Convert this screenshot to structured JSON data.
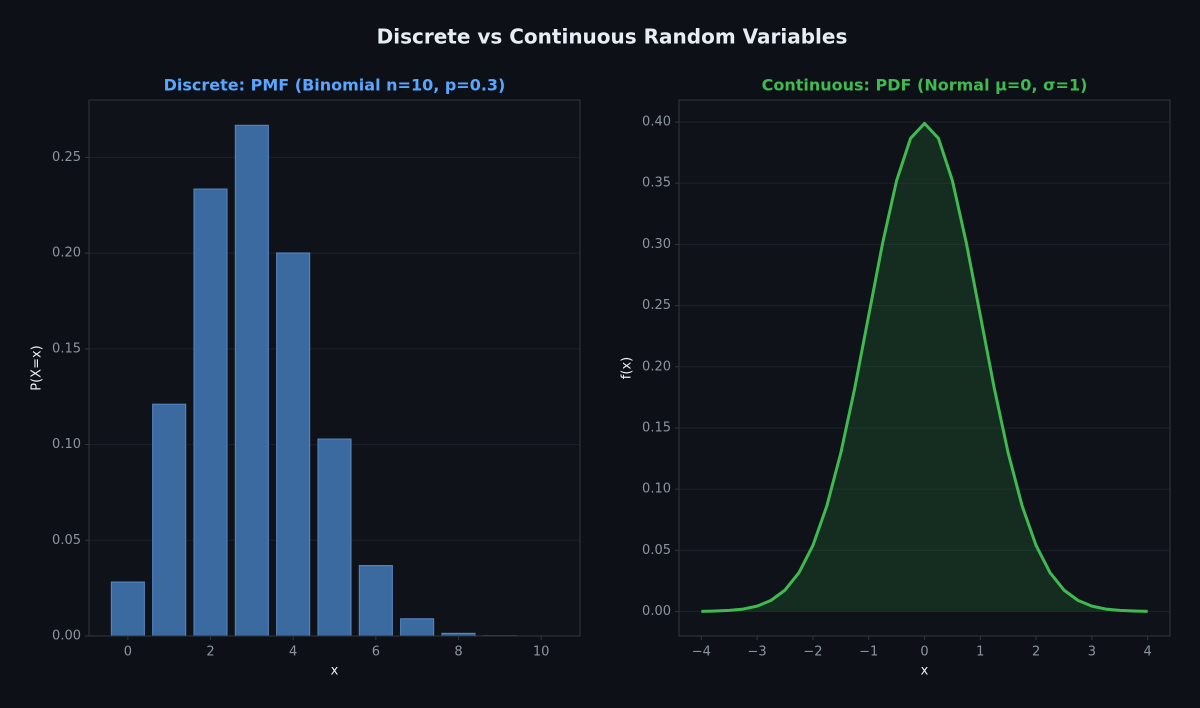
{
  "title": "Discrete vs Continuous Random Variables",
  "chart_data": [
    {
      "type": "bar",
      "title": "Discrete: PMF (Binomial n=10, p=0.3)",
      "title_color": "#58a6ff",
      "x": [
        0,
        1,
        2,
        3,
        4,
        5,
        6,
        7,
        8,
        9,
        10
      ],
      "values": [
        0.0282,
        0.1211,
        0.2335,
        0.2668,
        0.2001,
        0.1029,
        0.0368,
        0.009,
        0.0014,
        0.0001,
        0.0
      ],
      "color": "#3d6fa8",
      "xlabel": "x",
      "ylabel": "P(X=x)",
      "xlim": [
        -0.94,
        10.94
      ],
      "ylim": [
        0,
        0.28
      ],
      "xticks": [
        0,
        2,
        4,
        6,
        8,
        10
      ],
      "yticks": [
        {
          "value": 0,
          "label": "0.00"
        },
        {
          "value": 0.05,
          "label": "0.05"
        },
        {
          "value": 0.1,
          "label": "0.10"
        },
        {
          "value": 0.15,
          "label": "0.15"
        },
        {
          "value": 0.2,
          "label": "0.20"
        },
        {
          "value": 0.25,
          "label": "0.25"
        }
      ],
      "grid": true
    },
    {
      "type": "area",
      "title": "Continuous: PDF (Normal μ=0, σ=1)",
      "title_color": "#3fb950",
      "x": [
        -4,
        -3.75,
        -3.5,
        -3.25,
        -3,
        -2.75,
        -2.5,
        -2.25,
        -2,
        -1.75,
        -1.5,
        -1.25,
        -1,
        -0.75,
        -0.5,
        -0.25,
        0,
        0.25,
        0.5,
        0.75,
        1,
        1.25,
        1.5,
        1.75,
        2,
        2.25,
        2.5,
        2.75,
        3,
        3.25,
        3.5,
        3.75,
        4
      ],
      "values": [
        0.0001,
        0.0004,
        0.0009,
        0.002,
        0.0044,
        0.0091,
        0.0175,
        0.0317,
        0.054,
        0.0863,
        0.1295,
        0.1826,
        0.242,
        0.3011,
        0.3521,
        0.3867,
        0.3989,
        0.3867,
        0.3521,
        0.3011,
        0.242,
        0.1826,
        0.1295,
        0.0863,
        0.054,
        0.0317,
        0.0175,
        0.0091,
        0.0044,
        0.002,
        0.0009,
        0.0004,
        0.0001
      ],
      "color": "#3fb950",
      "xlabel": "x",
      "ylabel": "f(x)",
      "xlim": [
        -4.4,
        4.4
      ],
      "ylim": [
        -0.02,
        0.418
      ],
      "xticks": [
        {
          "value": -4,
          "label": "−4"
        },
        {
          "value": -3,
          "label": "−3"
        },
        {
          "value": -2,
          "label": "−2"
        },
        {
          "value": -1,
          "label": "−1"
        },
        0,
        1,
        2,
        3,
        4
      ],
      "yticks": [
        {
          "value": 0,
          "label": "0.00"
        },
        {
          "value": 0.05,
          "label": "0.05"
        },
        {
          "value": 0.1,
          "label": "0.10"
        },
        {
          "value": 0.15,
          "label": "0.15"
        },
        {
          "value": 0.2,
          "label": "0.20"
        },
        {
          "value": 0.25,
          "label": "0.25"
        },
        {
          "value": 0.3,
          "label": "0.30"
        },
        {
          "value": 0.35,
          "label": "0.35"
        },
        {
          "value": 0.4,
          "label": "0.40"
        }
      ],
      "grid": true
    }
  ]
}
